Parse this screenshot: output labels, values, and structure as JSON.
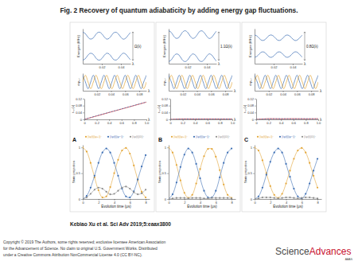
{
  "slide": {
    "title": "Fig. 2 Recovery of quantum adiabaticity by adding energy gap fluctuations.",
    "citation": "Kebiao Xu et al. Sci Adv 2019;5:eaax3800",
    "copyright": [
      "Copyright © 2019 The Authors, some rights reserved; exclusive licensee American Association",
      "for the Advancement of Science. No claim to original U.S. Government Works. Distributed",
      "under a Creative Commons Attribution NonCommercial License 4.0 (CC BY-NC)."
    ],
    "logo": {
      "main": "Science",
      "accent": "Advances",
      "sub": "AAAS"
    }
  },
  "chart_data": [
    {
      "type": "line",
      "x_label": "λ",
      "y_label": "Energies (MHz)",
      "annotations": [
        "Ω(λ)"
      ],
      "tick_labels": "x",
      "xlim": [
        0,
        0.05
      ],
      "xticks": [
        0.02,
        0.04
      ],
      "ylim": [
        -1.5,
        1.5
      ],
      "x": [
        0,
        0.0025,
        0.005,
        0.0075,
        0.01,
        0.0125,
        0.015,
        0.0175,
        0.02,
        0.0225,
        0.025,
        0.0275,
        0.03,
        0.0325,
        0.035,
        0.0375,
        0.04,
        0.0425,
        0.045,
        0.0475,
        0.05
      ],
      "series": [
        {
          "color": "#3b6db3",
          "values": [
            1.2,
            1.09,
            0.82,
            0.62,
            0.64,
            0.86,
            1.13,
            1.2,
            1.06,
            0.79,
            0.61,
            0.66,
            0.9,
            1.15,
            1.19,
            1.03,
            0.76,
            0.6,
            0.68,
            0.93,
            1.17
          ]
        },
        {
          "color": "#3b6db3",
          "values": [
            -1.2,
            -1.09,
            -0.82,
            -0.62,
            -0.64,
            -0.86,
            -1.13,
            -1.2,
            -1.06,
            -0.79,
            -0.61,
            -0.66,
            -0.9,
            -1.15,
            -1.19,
            -1.03,
            -0.76,
            -0.6,
            -0.68,
            -0.93,
            -1.17
          ]
        }
      ]
    },
    {
      "type": "line",
      "x_label": "λ",
      "y_label": "eiφ₁,₂",
      "tick_labels": "x",
      "xlim": [
        0,
        0.09
      ],
      "xticks": [
        0.02,
        0.04,
        0.06,
        0.08
      ],
      "ylim": [
        -1.3,
        1.3
      ],
      "x": [
        0,
        0.00375,
        0.0075,
        0.01125,
        0.015,
        0.01875,
        0.0225,
        0.02625,
        0.03,
        0.03375,
        0.0375,
        0.04125,
        0.045,
        0.04875,
        0.0525,
        0.05625,
        0.06,
        0.06375,
        0.0675,
        0.07125,
        0.075,
        0.07875,
        0.0825,
        0.08625,
        0.09
      ],
      "series": [
        {
          "color": "#3b6db3",
          "values": [
            1,
            0,
            -1,
            0,
            1,
            0,
            -1,
            0,
            1,
            0,
            -1,
            0,
            1,
            0,
            -1,
            0,
            1,
            0,
            -1,
            0,
            1,
            0,
            -1,
            0,
            1
          ]
        },
        {
          "color": "#e3a535",
          "values": [
            0,
            1,
            0,
            -1,
            0,
            1,
            0,
            -1,
            0,
            1,
            0,
            -1,
            0,
            1,
            0,
            -1,
            0,
            1,
            0,
            -1,
            0,
            1,
            0,
            -1,
            0
          ]
        }
      ]
    },
    {
      "type": "line",
      "x_label": "λ",
      "y_label": "ε₁,₂(λ)",
      "xlim": [
        0,
        1
      ],
      "xticks": [
        0,
        0.2,
        0.4,
        0.6,
        0.8,
        {
          "value": 1,
          "label": "1.0"
        }
      ],
      "ylim": [
        0,
        0.12
      ],
      "yticks": [
        0,
        0.04,
        0.08,
        0.12
      ],
      "x": [
        0,
        0.2,
        0.4,
        0.6,
        0.8,
        1
      ],
      "series": [
        {
          "color": "#d62728",
          "line_style": "solid",
          "values": [
            0,
            0.02,
            0.04,
            0.06,
            0.08,
            0.1
          ]
        },
        {
          "color": "#3b6db3",
          "line_style": "dashed",
          "values": [
            0,
            0.021,
            0.041,
            0.061,
            0.081,
            0.101
          ]
        }
      ]
    },
    {
      "type": "line",
      "title": "A",
      "x_label": "Evolution time (μs)",
      "y_label": "State projection",
      "legend": "top",
      "xlim": [
        0,
        8.5
      ],
      "xticks": [
        0,
        2,
        4,
        6,
        8
      ],
      "ylim": [
        0,
        1.05
      ],
      "yticks": [
        0,
        0.5,
        1
      ],
      "x": [
        0,
        0.5,
        1,
        1.5,
        2,
        2.5,
        3,
        3.5,
        4,
        4.5,
        5,
        5.5,
        6,
        6.5,
        7,
        7.5,
        8
      ],
      "series": [
        {
          "name": "|⟨ψ(t)|ψ+⟩|²",
          "color": "#e3a535",
          "marker": "circle",
          "values": [
            1,
            0.92,
            0.7,
            0.42,
            0.17,
            0.03,
            0.05,
            0.23,
            0.5,
            0.76,
            0.94,
            0.99,
            0.88,
            0.65,
            0.37,
            0.14,
            0.03
          ]
        },
        {
          "name": "|⟨ψ(t)|ψ−⟩|²",
          "color": "#3b6db3",
          "marker": "circle",
          "values": [
            0,
            0.06,
            0.22,
            0.45,
            0.7,
            0.9,
            0.98,
            0.9,
            0.7,
            0.45,
            0.2,
            0.05,
            0.03,
            0.15,
            0.38,
            0.63,
            0.85
          ]
        },
        {
          "name": "|⟨ψ(t)|0⟩|²",
          "color": "#8c8c8c",
          "marker": "circle",
          "values": [
            0,
            0.03,
            0.1,
            0.18,
            0.22,
            0.2,
            0.14,
            0.09,
            0.1,
            0.16,
            0.22,
            0.24,
            0.2,
            0.13,
            0.09,
            0.11,
            0.18
          ]
        }
      ]
    },
    {
      "type": "line",
      "x_label": "λ",
      "y_label": "Energies (MHz)",
      "annotations": [
        "1.1Ω(λ)"
      ],
      "tick_labels": "x",
      "xlim": [
        0,
        0.05
      ],
      "xticks": [
        0.02,
        0.04
      ],
      "ylim": [
        -1.5,
        1.5
      ],
      "x": [
        0,
        0.0025,
        0.005,
        0.0075,
        0.01,
        0.0125,
        0.015,
        0.0175,
        0.02,
        0.0225,
        0.025,
        0.0275,
        0.03,
        0.0325,
        0.035,
        0.0375,
        0.04,
        0.0425,
        0.045,
        0.0475,
        0.05
      ],
      "series": [
        {
          "color": "#3b6db3",
          "values": [
            1.32,
            1.2,
            0.9,
            0.68,
            0.7,
            0.95,
            1.24,
            1.32,
            1.17,
            0.87,
            0.67,
            0.73,
            0.99,
            1.27,
            1.31,
            1.13,
            0.84,
            0.66,
            0.75,
            1.02,
            1.29
          ]
        },
        {
          "color": "#3b6db3",
          "values": [
            -1.32,
            -1.2,
            -0.9,
            -0.68,
            -0.7,
            -0.95,
            -1.24,
            -1.32,
            -1.17,
            -0.87,
            -0.67,
            -0.73,
            -0.99,
            -1.27,
            -1.31,
            -1.13,
            -0.84,
            -0.66,
            -0.75,
            -1.02,
            -1.29
          ]
        }
      ]
    },
    {
      "type": "line",
      "x_label": "λ",
      "y_label": "eiφ₁,₂",
      "tick_labels": "x",
      "xlim": [
        0,
        0.09
      ],
      "xticks": [
        0.02,
        0.04,
        0.06,
        0.08
      ],
      "ylim": [
        -1.3,
        1.3
      ],
      "x": [
        0,
        0.00375,
        0.0075,
        0.01125,
        0.015,
        0.01875,
        0.0225,
        0.02625,
        0.03,
        0.03375,
        0.0375,
        0.04125,
        0.045,
        0.04875,
        0.0525,
        0.05625,
        0.06,
        0.06375,
        0.0675,
        0.07125,
        0.075,
        0.07875,
        0.0825,
        0.08625,
        0.09
      ],
      "series": [
        {
          "color": "#3b6db3",
          "values": [
            1,
            0,
            -1,
            0,
            1,
            0,
            -1,
            0,
            1,
            0,
            -1,
            0,
            1,
            0,
            -1,
            0,
            1,
            0,
            -1,
            0,
            1,
            0,
            -1,
            0,
            1
          ]
        },
        {
          "color": "#e3a535",
          "values": [
            0,
            1,
            0,
            -1,
            0,
            1,
            0,
            -1,
            0,
            1,
            0,
            -1,
            0,
            1,
            0,
            -1,
            0,
            1,
            0,
            -1,
            0,
            1,
            0,
            -1,
            0
          ]
        }
      ]
    },
    {
      "type": "line",
      "x_label": "λ",
      "y_label": "ε₁,₂(λ)",
      "xlim": [
        0,
        1
      ],
      "xticks": [
        0,
        0.2,
        0.4,
        0.6,
        0.8,
        {
          "value": 1,
          "label": "1.0"
        }
      ],
      "ylim": [
        0,
        0.12
      ],
      "yticks": [
        0,
        0.04,
        0.08,
        0.12
      ],
      "x": [
        0,
        0.2,
        0.4,
        0.6,
        0.8,
        1
      ],
      "series": [
        {
          "color": "#d62728",
          "line_style": "solid",
          "values": [
            0,
            0.003,
            0.002,
            0.003,
            0.002,
            0.003
          ]
        },
        {
          "color": "#3b6db3",
          "line_style": "dashed",
          "values": [
            0,
            0.002,
            0.003,
            0.002,
            0.003,
            0.002
          ]
        }
      ]
    },
    {
      "type": "line",
      "title": "B",
      "x_label": "Evolution time (μs)",
      "y_label": "State projection",
      "legend": "top",
      "xlim": [
        0,
        8.5
      ],
      "xticks": [
        0,
        2,
        4,
        6,
        8
      ],
      "ylim": [
        0,
        1.05
      ],
      "yticks": [
        0,
        0.5,
        1
      ],
      "x": [
        0,
        0.5,
        1,
        1.5,
        2,
        2.5,
        3,
        3.5,
        4,
        4.5,
        5,
        5.5,
        6,
        6.5,
        7,
        7.5,
        8
      ],
      "series": [
        {
          "name": "|⟨ψ(t)|ψ+⟩|²",
          "color": "#e3a535",
          "marker": "circle",
          "values": [
            1,
            0.9,
            0.66,
            0.36,
            0.12,
            0.02,
            0.08,
            0.3,
            0.58,
            0.83,
            0.97,
            0.97,
            0.82,
            0.56,
            0.28,
            0.08,
            0.02
          ]
        },
        {
          "name": "|⟨ψ(t)|ψ−⟩|²",
          "color": "#3b6db3",
          "marker": "circle",
          "values": [
            0,
            0.09,
            0.32,
            0.62,
            0.86,
            0.98,
            0.9,
            0.68,
            0.4,
            0.16,
            0.03,
            0.03,
            0.16,
            0.42,
            0.7,
            0.9,
            0.98
          ]
        },
        {
          "name": "|⟨ψ(t)|0⟩|²",
          "color": "#8c8c8c",
          "marker": "circle",
          "values": [
            0,
            0.01,
            0.02,
            0.02,
            0.02,
            0.01,
            0.02,
            0.02,
            0.02,
            0.01,
            0.01,
            0.02,
            0.02,
            0.02,
            0.02,
            0.02,
            0.01
          ]
        }
      ]
    },
    {
      "type": "line",
      "x_label": "λ",
      "y_label": "Energies (MHz)",
      "annotations": [
        "0.8Ω(λ)"
      ],
      "tick_labels": "x",
      "xlim": [
        0,
        0.05
      ],
      "xticks": [
        0.02,
        0.04
      ],
      "ylim": [
        -1.5,
        1.5
      ],
      "x": [
        0,
        0.0025,
        0.005,
        0.0075,
        0.01,
        0.0125,
        0.015,
        0.0175,
        0.02,
        0.0225,
        0.025,
        0.0275,
        0.03,
        0.0325,
        0.035,
        0.0375,
        0.04,
        0.0425,
        0.045,
        0.0475,
        0.05
      ],
      "series": [
        {
          "color": "#3b6db3",
          "values": [
            0.96,
            0.87,
            0.66,
            0.5,
            0.51,
            0.69,
            0.9,
            0.96,
            0.85,
            0.63,
            0.49,
            0.53,
            0.72,
            0.92,
            0.95,
            0.82,
            0.61,
            0.48,
            0.54,
            0.74,
            0.94
          ]
        },
        {
          "color": "#3b6db3",
          "values": [
            -0.96,
            -0.87,
            -0.66,
            -0.5,
            -0.51,
            -0.69,
            -0.9,
            -0.96,
            -0.85,
            -0.63,
            -0.49,
            -0.53,
            -0.72,
            -0.92,
            -0.95,
            -0.82,
            -0.61,
            -0.48,
            -0.54,
            -0.74,
            -0.94
          ]
        }
      ]
    },
    {
      "type": "line",
      "x_label": "λ",
      "y_label": "eiφ₁,₂",
      "tick_labels": "x",
      "xlim": [
        0,
        0.09
      ],
      "xticks": [
        0.02,
        0.04,
        0.06,
        0.08
      ],
      "ylim": [
        -1.3,
        1.3
      ],
      "x": [
        0,
        0.00375,
        0.0075,
        0.01125,
        0.015,
        0.01875,
        0.0225,
        0.02625,
        0.03,
        0.03375,
        0.0375,
        0.04125,
        0.045,
        0.04875,
        0.0525,
        0.05625,
        0.06,
        0.06375,
        0.0675,
        0.07125,
        0.075,
        0.07875,
        0.0825,
        0.08625,
        0.09
      ],
      "series": [
        {
          "color": "#3b6db3",
          "values": [
            1,
            0,
            -1,
            0,
            1,
            0,
            -1,
            0,
            1,
            0,
            -1,
            0,
            1,
            0,
            -1,
            0,
            1,
            0,
            -1,
            0,
            1,
            0,
            -1,
            0,
            1
          ]
        },
        {
          "color": "#e3a535",
          "values": [
            0,
            1,
            0,
            -1,
            0,
            1,
            0,
            -1,
            0,
            1,
            0,
            -1,
            0,
            1,
            0,
            -1,
            0,
            1,
            0,
            -1,
            0,
            1,
            0,
            -1,
            0
          ]
        }
      ]
    },
    {
      "type": "line",
      "x_label": "λ",
      "y_label": "ε₁,₂(λ)",
      "xlim": [
        0,
        1
      ],
      "xticks": [
        0,
        0.2,
        0.4,
        0.6,
        0.8,
        {
          "value": 1,
          "label": "1.0"
        }
      ],
      "ylim": [
        0,
        0.12
      ],
      "yticks": [
        0,
        0.04,
        0.08,
        0.12
      ],
      "x": [
        0,
        0.2,
        0.4,
        0.6,
        0.8,
        1
      ],
      "series": [
        {
          "color": "#d62728",
          "line_style": "solid",
          "values": [
            0,
            0.004,
            0.003,
            0.004,
            0.003,
            0.004
          ]
        },
        {
          "color": "#3b6db3",
          "line_style": "dashed",
          "values": [
            0,
            0.003,
            0.004,
            0.003,
            0.004,
            0.003
          ]
        }
      ]
    },
    {
      "type": "line",
      "title": "C",
      "x_label": "Evolution time (μs)",
      "y_label": "State projection",
      "legend": "top",
      "xlim": [
        0,
        8.5
      ],
      "xticks": [
        0,
        2,
        4,
        6,
        8
      ],
      "ylim": [
        0,
        1.05
      ],
      "yticks": [
        0,
        0.5,
        1
      ],
      "x": [
        0,
        0.5,
        1,
        1.5,
        2,
        2.5,
        3,
        3.5,
        4,
        4.5,
        5,
        5.5,
        6,
        6.5,
        7,
        7.5,
        8
      ],
      "series": [
        {
          "name": "|⟨ψ(t)|ψ+⟩|²",
          "color": "#e3a535",
          "marker": "circle",
          "values": [
            1,
            0.94,
            0.75,
            0.5,
            0.25,
            0.08,
            0.02,
            0.1,
            0.3,
            0.55,
            0.78,
            0.94,
            0.99,
            0.9,
            0.7,
            0.45,
            0.22
          ]
        },
        {
          "name": "|⟨ψ(t)|ψ−⟩|²",
          "color": "#3b6db3",
          "marker": "circle",
          "values": [
            0,
            0.05,
            0.22,
            0.47,
            0.72,
            0.9,
            0.98,
            0.9,
            0.68,
            0.43,
            0.2,
            0.05,
            0.01,
            0.1,
            0.3,
            0.55,
            0.78
          ]
        },
        {
          "name": "|⟨ψ(t)|0⟩|²",
          "color": "#8c8c8c",
          "marker": "circle",
          "values": [
            0,
            0.01,
            0.03,
            0.03,
            0.03,
            0.02,
            0.01,
            0.02,
            0.03,
            0.03,
            0.02,
            0.01,
            0.02,
            0.03,
            0.03,
            0.02,
            0.01
          ]
        }
      ]
    }
  ]
}
